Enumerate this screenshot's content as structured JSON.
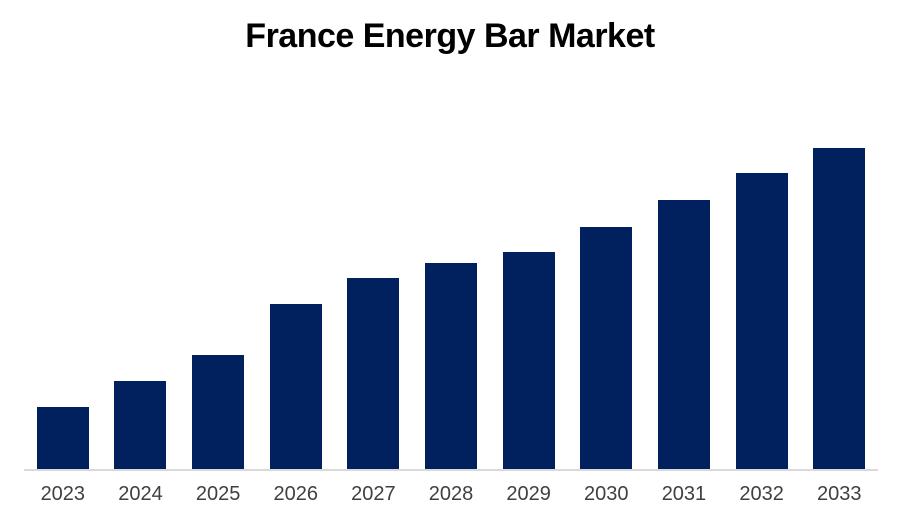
{
  "chart_data": {
    "type": "bar",
    "title": "France Energy Bar Market",
    "categories": [
      "2023",
      "2024",
      "2025",
      "2026",
      "2027",
      "2028",
      "2029",
      "2030",
      "2031",
      "2032",
      "2033"
    ],
    "values": [
      19.5,
      27.6,
      35.9,
      51.7,
      59.8,
      64.2,
      67.9,
      75.5,
      84.0,
      92.3,
      100
    ],
    "xlabel": "",
    "ylabel": "",
    "ylim": [
      0,
      115
    ],
    "y_axis_visible": false,
    "x_axis_visible": true,
    "gridlines": false,
    "legend_position": "none",
    "data_labels": false,
    "bar_color": "#00215E",
    "axis_line_color": "#D9D9D9",
    "tick_label_color": "#404040",
    "title_color": "#000000",
    "background_color": "#FFFFFF",
    "note": "values are relative units estimated from bar heights; no y-axis scale shown"
  }
}
